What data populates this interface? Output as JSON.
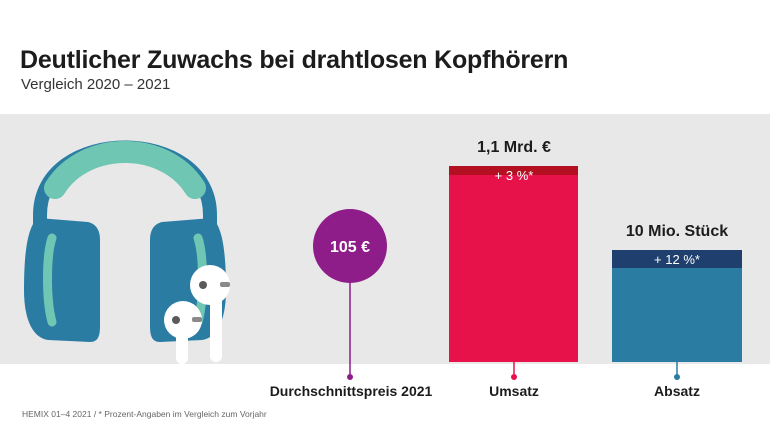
{
  "header": {
    "title": "Deutlicher Zuwachs bei drahtlosen Kopfhörern",
    "subtitle": "Vergleich 2020 – 2021"
  },
  "footer": {
    "note": "HEMIX 01–4 2021 / * Prozent-Angaben im Vergleich zum Vorjahr"
  },
  "colors": {
    "background_band": "#e8e8e8",
    "price": "#8e1d8a",
    "umsatz": "#e8124b",
    "umsatz_change": "#b31022",
    "absatz": "#2a7ca3",
    "absatz_change": "#1f3f6e",
    "headphones": "#2a7ca3",
    "headband": "#6fc6b2"
  },
  "icons": {
    "illustration": "headphones-and-earbuds-icon"
  },
  "chart_data": {
    "type": "bar",
    "categories": [
      "Durchschnittspreis 2021",
      "Umsatz",
      "Absatz"
    ],
    "items": [
      {
        "category": "Durchschnittspreis 2021",
        "value_label": "105 €",
        "change_label": ""
      },
      {
        "category": "Umsatz",
        "value_label": "1,1 Mrd. €",
        "change_label": "+ 3 %*",
        "change_percent": 3
      },
      {
        "category": "Absatz",
        "value_label": "10 Mio. Stück",
        "change_label": "+ 12 %*",
        "change_percent": 12
      }
    ]
  }
}
